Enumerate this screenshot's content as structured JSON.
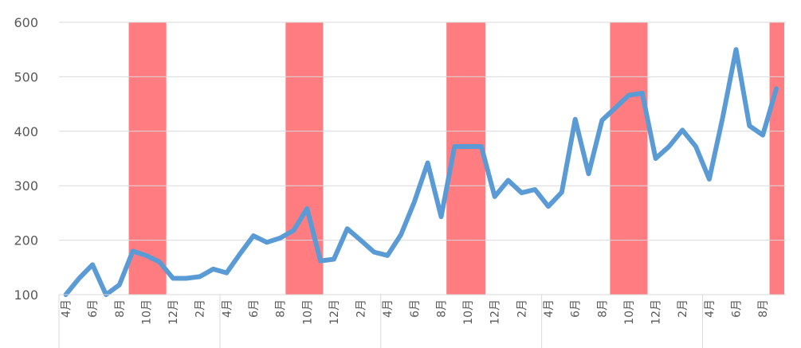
{
  "chart_data": {
    "type": "line",
    "title": "",
    "xlabel": "",
    "ylabel": "",
    "ylim": [
      100,
      600
    ],
    "yticks": [
      100,
      200,
      300,
      400,
      500,
      600
    ],
    "grid": "horizontal",
    "x_tick_labels": [
      "4月",
      "6月",
      "8月",
      "10月",
      "12月",
      "2月",
      "4月",
      "6月",
      "8月",
      "10月",
      "12月",
      "2月",
      "4月",
      "6月",
      "8月",
      "10月",
      "12月",
      "2月",
      "4月",
      "6月",
      "8月",
      "10月",
      "12月",
      "2月",
      "4月",
      "6月",
      "8月"
    ],
    "series": [
      {
        "color": "#5b9bd5",
        "values": [
          100,
          130,
          155,
          100,
          118,
          180,
          172,
          160,
          130,
          130,
          133,
          147,
          140,
          175,
          208,
          196,
          204,
          218,
          258,
          162,
          165,
          221,
          200,
          178,
          172,
          210,
          270,
          342,
          243,
          372,
          372,
          372,
          280,
          310,
          287,
          293,
          262,
          288,
          422,
          322,
          420,
          443,
          466,
          470,
          350,
          372,
          402,
          372,
          312,
          425,
          550,
          410,
          393,
          478
        ]
      }
    ],
    "highlight_bands": {
      "color": "#ff7c80",
      "ranges": [
        [
          4.7,
          7.5
        ],
        [
          16.4,
          19.2
        ],
        [
          28.4,
          31.3
        ],
        [
          40.6,
          43.4
        ],
        [
          52.5,
          53.6
        ]
      ]
    },
    "year_separators": [
      0,
      12,
      24,
      36,
      48
    ]
  }
}
